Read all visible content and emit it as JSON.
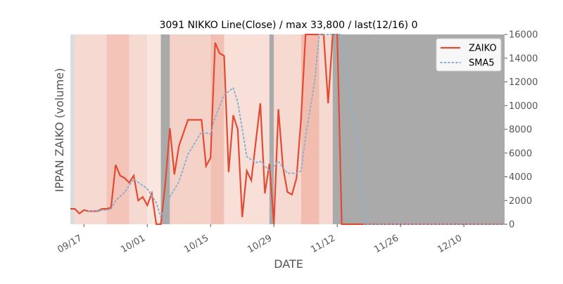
{
  "chart_data": {
    "type": "line",
    "title": "3091 NIKKO Line(Close) / max 33,800 / last(12/16) 0",
    "xlabel": "DATE",
    "ylabel": "IPPAN ZAIKO (volume)",
    "ylim": [
      0,
      16000
    ],
    "xlim": [
      "2018-09-14",
      "2018-12-19"
    ],
    "y_ticks": [
      0,
      2000,
      4000,
      6000,
      8000,
      10000,
      12000,
      14000,
      16000
    ],
    "x_ticks": [
      {
        "date": "2018-09-17",
        "label": "09/17"
      },
      {
        "date": "2018-10-01",
        "label": "10/01"
      },
      {
        "date": "2018-10-15",
        "label": "10/15"
      },
      {
        "date": "2018-10-29",
        "label": "10/29"
      },
      {
        "date": "2018-11-12",
        "label": "11/12"
      },
      {
        "date": "2018-11-26",
        "label": "11/26"
      },
      {
        "date": "2018-12-10",
        "label": "12/10"
      }
    ],
    "legend_position": "top-right",
    "grid": false,
    "series": [
      {
        "name": "ZAIKO",
        "color": "#e24a33",
        "style": "solid",
        "points": [
          [
            "2018-09-14",
            1300
          ],
          [
            "2018-09-15",
            1300
          ],
          [
            "2018-09-16",
            900
          ],
          [
            "2018-09-17",
            1200
          ],
          [
            "2018-09-18",
            1100
          ],
          [
            "2018-09-19",
            1100
          ],
          [
            "2018-09-20",
            1100
          ],
          [
            "2018-09-21",
            1300
          ],
          [
            "2018-09-22",
            1300
          ],
          [
            "2018-09-23",
            1400
          ],
          [
            "2018-09-24",
            5000
          ],
          [
            "2018-09-25",
            4100
          ],
          [
            "2018-09-26",
            3900
          ],
          [
            "2018-09-27",
            3500
          ],
          [
            "2018-09-28",
            4100
          ],
          [
            "2018-09-29",
            2000
          ],
          [
            "2018-09-30",
            2300
          ],
          [
            "2018-10-01",
            1600
          ],
          [
            "2018-10-02",
            2600
          ],
          [
            "2018-10-03",
            0
          ],
          [
            "2018-10-04",
            0
          ],
          [
            "2018-10-05",
            3500
          ],
          [
            "2018-10-06",
            8100
          ],
          [
            "2018-10-07",
            4200
          ],
          [
            "2018-10-08",
            6600
          ],
          [
            "2018-10-10",
            8800
          ],
          [
            "2018-10-13",
            8800
          ],
          [
            "2018-10-14",
            4900
          ],
          [
            "2018-10-15",
            5600
          ],
          [
            "2018-10-16",
            15300
          ],
          [
            "2018-10-17",
            14400
          ],
          [
            "2018-10-18",
            14200
          ],
          [
            "2018-10-19",
            4400
          ],
          [
            "2018-10-20",
            9200
          ],
          [
            "2018-10-21",
            8000
          ],
          [
            "2018-10-22",
            600
          ],
          [
            "2018-10-23",
            4500
          ],
          [
            "2018-10-24",
            3700
          ],
          [
            "2018-10-26",
            10200
          ],
          [
            "2018-10-27",
            2600
          ],
          [
            "2018-10-28",
            5100
          ],
          [
            "2018-10-29",
            0
          ],
          [
            "2018-10-30",
            9700
          ],
          [
            "2018-10-31",
            4800
          ],
          [
            "2018-11-01",
            2700
          ],
          [
            "2018-11-02",
            2500
          ],
          [
            "2018-11-03",
            3900
          ],
          [
            "2018-11-04",
            8900
          ],
          [
            "2018-11-05",
            16000
          ],
          [
            "2018-11-09",
            16000
          ],
          [
            "2018-11-10",
            10200
          ],
          [
            "2018-11-11",
            16000
          ],
          [
            "2018-11-12",
            16000
          ],
          [
            "2018-11-13",
            0
          ],
          [
            "2018-12-19",
            0
          ]
        ]
      },
      {
        "name": "SMA5",
        "color": "#8eb1cf",
        "style": "dotted",
        "points": [
          [
            "2018-09-18",
            1120
          ],
          [
            "2018-09-21",
            1160
          ],
          [
            "2018-09-23",
            1250
          ],
          [
            "2018-09-24",
            2000
          ],
          [
            "2018-09-26",
            2700
          ],
          [
            "2018-09-28",
            3800
          ],
          [
            "2018-10-01",
            3000
          ],
          [
            "2018-10-03",
            1800
          ],
          [
            "2018-10-04",
            600
          ],
          [
            "2018-10-06",
            2300
          ],
          [
            "2018-10-08",
            3600
          ],
          [
            "2018-10-10",
            5900
          ],
          [
            "2018-10-13",
            7800
          ],
          [
            "2018-10-15",
            7600
          ],
          [
            "2018-10-16",
            9000
          ],
          [
            "2018-10-18",
            10900
          ],
          [
            "2018-10-20",
            11500
          ],
          [
            "2018-10-21",
            10300
          ],
          [
            "2018-10-23",
            5700
          ],
          [
            "2018-10-25",
            5200
          ],
          [
            "2018-10-26",
            5300
          ],
          [
            "2018-10-28",
            4500
          ],
          [
            "2018-10-30",
            5300
          ],
          [
            "2018-11-01",
            4300
          ],
          [
            "2018-11-03",
            4300
          ],
          [
            "2018-11-04",
            4500
          ],
          [
            "2018-11-05",
            7400
          ],
          [
            "2018-11-07",
            12000
          ],
          [
            "2018-11-08",
            16000
          ],
          [
            "2018-11-13",
            16000
          ],
          [
            "2018-11-14",
            13000
          ],
          [
            "2018-11-15",
            10000
          ],
          [
            "2018-11-16",
            8200
          ],
          [
            "2018-11-17",
            5500
          ],
          [
            "2018-11-18",
            0
          ],
          [
            "2018-12-19",
            0
          ]
        ]
      }
    ],
    "background_bands": [
      {
        "from": "2018-09-14",
        "to": "2018-09-15",
        "color": "#dcdcdc",
        "opacity": 1
      },
      {
        "from": "2018-09-15",
        "to": "2018-09-22",
        "color": "#f6d9d0",
        "opacity": 1
      },
      {
        "from": "2018-09-22",
        "to": "2018-09-27",
        "color": "#f3c4b7",
        "opacity": 1
      },
      {
        "from": "2018-09-27",
        "to": "2018-10-01",
        "color": "#f6d9d0",
        "opacity": 1
      },
      {
        "from": "2018-10-01",
        "to": "2018-10-04",
        "color": "#f9e6df",
        "opacity": 1
      },
      {
        "from": "2018-10-04",
        "to": "2018-10-06",
        "color": "#aaaaaa",
        "opacity": 1
      },
      {
        "from": "2018-10-06",
        "to": "2018-10-15",
        "color": "#f5d2c8",
        "opacity": 1
      },
      {
        "from": "2018-10-15",
        "to": "2018-10-18",
        "color": "#f2c0b2",
        "opacity": 1
      },
      {
        "from": "2018-10-18",
        "to": "2018-10-28",
        "color": "#f8e0d8",
        "opacity": 1
      },
      {
        "from": "2018-10-28",
        "to": "2018-10-29",
        "color": "#aaaaaa",
        "opacity": 1
      },
      {
        "from": "2018-10-29",
        "to": "2018-11-04",
        "color": "#f6d9d0",
        "opacity": 1
      },
      {
        "from": "2018-11-04",
        "to": "2018-11-08",
        "color": "#f2bdae",
        "opacity": 1
      },
      {
        "from": "2018-11-08",
        "to": "2018-11-11",
        "color": "#f6d9d0",
        "opacity": 1
      },
      {
        "from": "2018-11-11",
        "to": "2018-12-19",
        "color": "#aaaaaa",
        "opacity": 1
      }
    ]
  }
}
